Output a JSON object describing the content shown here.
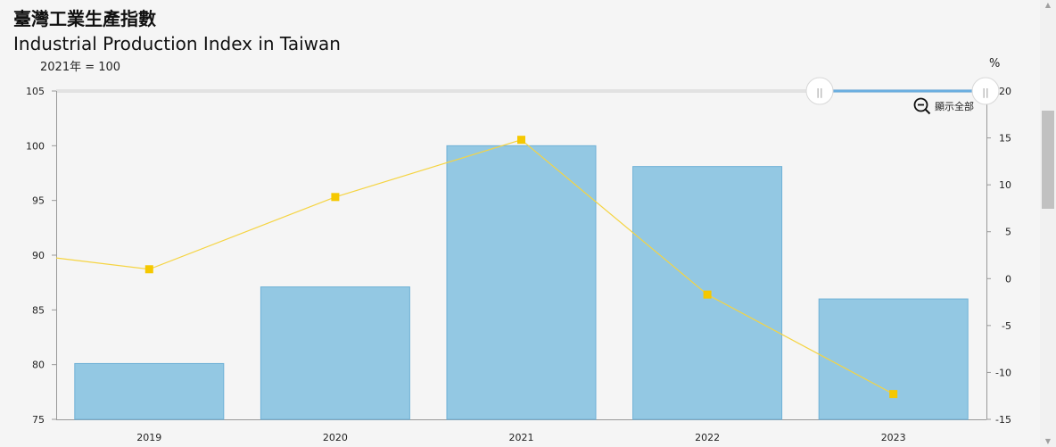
{
  "header": {
    "title_zh": "臺灣工業生產指數",
    "title_en": "Industrial Production Index in Taiwan",
    "unit_left": "2021年 = 100",
    "unit_right": "%"
  },
  "controls": {
    "reset_zoom_label": "顯示全部",
    "range_handle_start_glyph": "||",
    "range_handle_end_glyph": "||"
  },
  "colors": {
    "bar": "#93c8e3",
    "bar_stroke": "#6fb1d6",
    "line": "#f5d442",
    "marker": "#f5c800",
    "range_track": "#6aaee0"
  },
  "chart_data": {
    "type": "bar",
    "categories": [
      "2019",
      "2020",
      "2021",
      "2022",
      "2023"
    ],
    "series": [
      {
        "type": "bar",
        "axis": "left",
        "values": [
          80.1,
          87.1,
          100.0,
          98.1,
          86.0
        ]
      },
      {
        "type": "line",
        "axis": "right",
        "values": [
          1.0,
          8.7,
          14.8,
          -1.7,
          -12.3
        ]
      }
    ],
    "y_left": {
      "min": 75,
      "max": 105,
      "ticks": [
        75,
        80,
        85,
        90,
        95,
        100,
        105
      ]
    },
    "y_right": {
      "min": -15,
      "max": 20,
      "ticks": [
        -15,
        -10,
        -5,
        0,
        5,
        10,
        15,
        20
      ]
    },
    "line_left_edge_value": 2.2,
    "grid": false,
    "legend": "none"
  }
}
